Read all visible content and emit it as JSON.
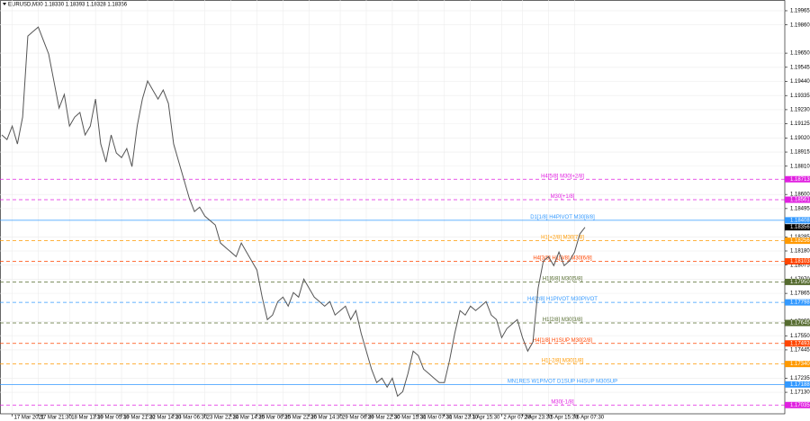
{
  "chart_data": {
    "type": "line",
    "title": "EURUSD,M30  1.18330 1.18393 1.18328 1.18356",
    "series": [
      {
        "name": "EURUSD,M30",
        "color": "#555555",
        "values": [
          1.19042,
          1.19008,
          1.19108,
          1.18975,
          1.19175,
          1.19777,
          1.19811,
          1.19844,
          1.19744,
          1.19644,
          1.19443,
          1.19242,
          1.19343,
          1.19108,
          1.19175,
          1.19209,
          1.19042,
          1.19108,
          1.19309,
          1.18975,
          1.18841,
          1.19042,
          1.18908,
          1.18874,
          1.18941,
          1.18807,
          1.19108,
          1.19309,
          1.19443,
          1.19376,
          1.19309,
          1.19376,
          1.19276,
          1.18975,
          1.18841,
          1.18707,
          1.18573,
          1.18473,
          1.18506,
          1.18439,
          1.18406,
          1.18373,
          1.18239,
          1.18205,
          1.18172,
          1.18138,
          1.18239,
          1.18172,
          1.18105,
          1.18038,
          1.17837,
          1.1767,
          1.17704,
          1.17804,
          1.17837,
          1.1777,
          1.17871,
          1.17837,
          1.17971,
          1.17904,
          1.17837,
          1.17804,
          1.1777,
          1.17804,
          1.17704,
          1.17737,
          1.1777,
          1.1767,
          1.17737,
          1.1757,
          1.17436,
          1.17302,
          1.17202,
          1.17235,
          1.17168,
          1.17235,
          1.17101,
          1.17135,
          1.17269,
          1.17436,
          1.17402,
          1.17302,
          1.17269,
          1.17235,
          1.17202,
          1.17202,
          1.17369,
          1.1757,
          1.17737,
          1.17704,
          1.1777,
          1.17737,
          1.1777,
          1.17804,
          1.17704,
          1.1767,
          1.17536,
          1.17603,
          1.17637,
          1.1767,
          1.17536,
          1.17436,
          1.17503,
          1.17904,
          1.18105,
          1.18138,
          1.18071,
          1.18172,
          1.18071,
          1.18105,
          1.18172,
          1.18306,
          1.18356
        ]
      }
    ],
    "xlim": [
      0,
      112
    ],
    "xticks": [
      {
        "value": 2,
        "label": "17 Mar 2021"
      },
      {
        "value": 7,
        "label": "17 Mar 21:30"
      },
      {
        "value": 13,
        "label": "18 Mar 13:30"
      },
      {
        "value": 18,
        "label": "19 Mar 05:30"
      },
      {
        "value": 23,
        "label": "19 Mar 21:30"
      },
      {
        "value": 28,
        "label": "22 Mar 14:30"
      },
      {
        "value": 33,
        "label": "23 Mar 06:30"
      },
      {
        "value": 39,
        "label": "23 Mar 22:30"
      },
      {
        "value": 44,
        "label": "24 Mar 14:30"
      },
      {
        "value": 49,
        "label": "25 Mar 06:30"
      },
      {
        "value": 54,
        "label": "25 Mar 22:30"
      },
      {
        "value": 59,
        "label": "26 Mar 14:30"
      },
      {
        "value": 65,
        "label": "29 Mar 06:30"
      },
      {
        "value": 70,
        "label": "29 Mar 22:30"
      },
      {
        "value": 75,
        "label": "30 Mar 15:30"
      },
      {
        "value": 80,
        "label": "31 Mar 07:30"
      },
      {
        "value": 85,
        "label": "31 Mar 23:30"
      },
      {
        "value": 90,
        "label": "1 Apr 15:30"
      },
      {
        "value": 96,
        "label": "2 Apr 07:30"
      },
      {
        "value": 100,
        "label": "2 Apr 23:30"
      },
      {
        "value": 105,
        "label": "5 Apr 15:30"
      },
      {
        "value": 110,
        "label": "6 Apr 07:30"
      }
    ],
    "ylim": [
      1.1697,
      1.20045
    ],
    "yticks": [
      {
        "value": 1.19965,
        "label": "1.19965"
      },
      {
        "value": 1.1986,
        "label": "1.19860"
      },
      {
        "value": 1.1965,
        "label": "1.19650"
      },
      {
        "value": 1.19545,
        "label": "1.19545"
      },
      {
        "value": 1.1944,
        "label": "1.19440"
      },
      {
        "value": 1.19335,
        "label": "1.19335"
      },
      {
        "value": 1.1923,
        "label": "1.19230"
      },
      {
        "value": 1.19125,
        "label": "1.19125"
      },
      {
        "value": 1.1902,
        "label": "1.19020"
      },
      {
        "value": 1.18915,
        "label": "1.18915"
      },
      {
        "value": 1.1881,
        "label": "1.18810"
      },
      {
        "value": 1.186,
        "label": "1.18600"
      },
      {
        "value": 1.18495,
        "label": "1.18495"
      },
      {
        "value": 1.18285,
        "label": "1.18285"
      },
      {
        "value": 1.1818,
        "label": "1.18180"
      },
      {
        "value": 1.18075,
        "label": "1.18075"
      },
      {
        "value": 1.1797,
        "label": "1.17970"
      },
      {
        "value": 1.17865,
        "label": "1.17865"
      },
      {
        "value": 1.17655,
        "label": "1.17655"
      },
      {
        "value": 1.1755,
        "label": "1.17550"
      },
      {
        "value": 1.17445,
        "label": "1.17445"
      },
      {
        "value": 1.17235,
        "label": "1.17235"
      },
      {
        "value": 1.1713,
        "label": "1.17130"
      }
    ],
    "grid": true,
    "levels": [
      {
        "name": "H4[5/8] M30[+2/8]",
        "value": 1.18713,
        "price_label": "1.18713",
        "color": "#e020e0",
        "style": "dashed"
      },
      {
        "name": "M30[+1/8]",
        "value": 1.18561,
        "price_label": "1.18561",
        "color": "#e020e0",
        "style": "dashed"
      },
      {
        "name": "D1[1/8] H4PIVOT M30[8/8]",
        "value": 1.18408,
        "price_label": "1.18408",
        "color": "#3399ff",
        "style": "solid"
      },
      {
        "name": "H1[+2/8] M30[7/8]",
        "value": 1.18256,
        "price_label": "1.18256",
        "color": "#ff9900",
        "style": "dashed"
      },
      {
        "name": "H4[3/8] H1[8/8] M30[6/8]",
        "value": 1.18103,
        "price_label": "1.18103",
        "color": "#ff4500",
        "style": "dashed"
      },
      {
        "name": "H1[6/8] M30[5/8]",
        "value": 1.1795,
        "price_label": "1.17950",
        "color": "#556b2f",
        "style": "dashed"
      },
      {
        "name": "H4[2/8] H1PIVOT M30PIVOT",
        "value": 1.17798,
        "price_label": "1.17798",
        "color": "#3399ff",
        "style": "dashed"
      },
      {
        "name": "H1[2/8] M30[3/8]",
        "value": 1.17645,
        "price_label": "1.17645",
        "color": "#556b2f",
        "style": "dashed"
      },
      {
        "name": "H4[1/8] H1SUP M30[2/8]",
        "value": 1.17493,
        "price_label": "1.17493",
        "color": "#ff4500",
        "style": "dashed"
      },
      {
        "name": "H1[-2/8] M30[1/8]",
        "value": 1.1734,
        "price_label": "1.17340",
        "color": "#ff9900",
        "style": "dashed"
      },
      {
        "name": "MN1RES W1PIVOT D1SUP H4SUP M30SUP",
        "value": 1.17188,
        "price_label": "1.17188",
        "color": "#3399ff",
        "style": "solid"
      },
      {
        "name": "M30[-1/8]",
        "value": 1.17035,
        "price_label": "1.17035",
        "color": "#e020e0",
        "style": "dashed"
      }
    ]
  }
}
